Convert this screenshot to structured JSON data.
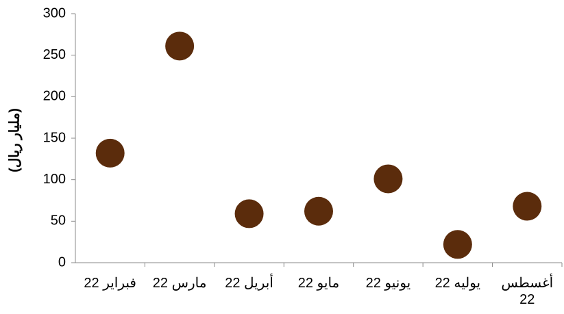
{
  "chart_data": {
    "type": "dot",
    "ylabel": "(مليار ريال)",
    "categories": [
      "فبراير 22",
      "مارس 22",
      "أبريل 22",
      "مايو 22",
      "يونيو 22",
      "يوليه 22",
      "أغسطس 22"
    ],
    "values": [
      132,
      261,
      59,
      62,
      101,
      22,
      68
    ],
    "color": "#5b2c0c",
    "ylim": [
      0,
      300
    ],
    "yticks": [
      0,
      50,
      100,
      150,
      200,
      250,
      300
    ],
    "grid": false
  }
}
